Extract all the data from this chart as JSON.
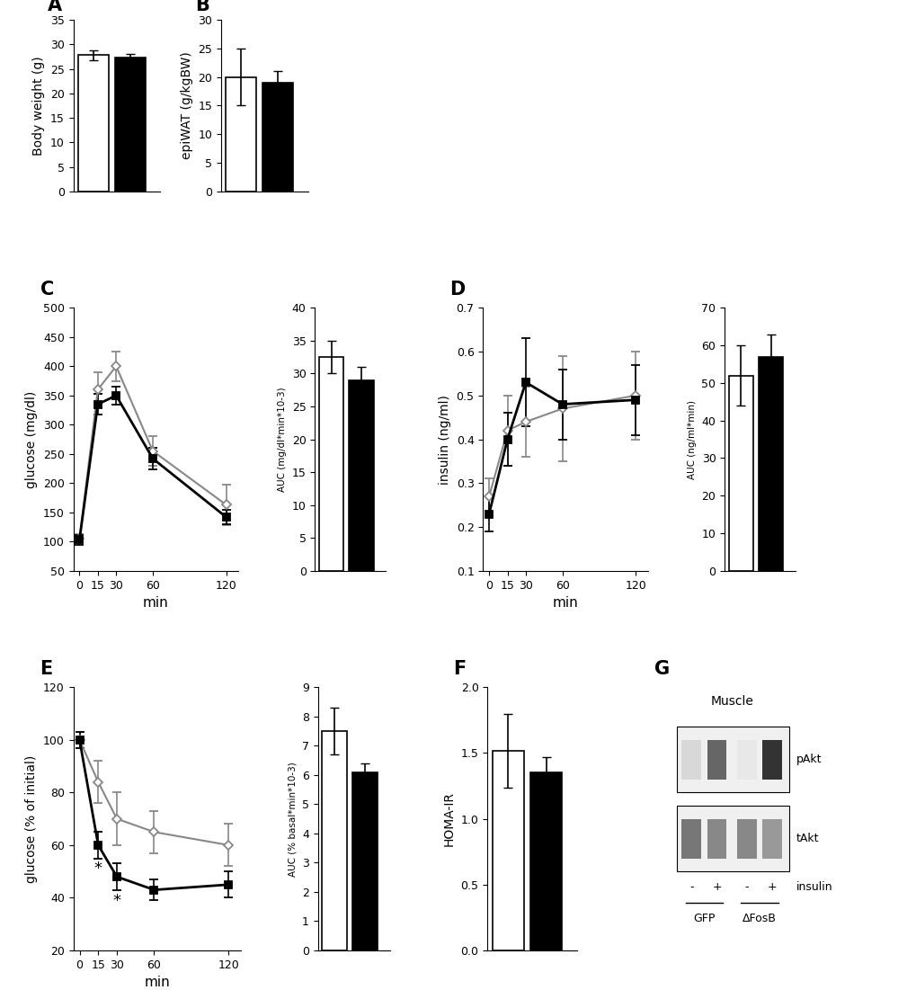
{
  "panel_A": {
    "bars": [
      27.8,
      27.3
    ],
    "errors": [
      1.0,
      0.7
    ],
    "colors": [
      "white",
      "black"
    ],
    "ylabel": "Body weight (g)",
    "ylim": [
      0,
      35
    ],
    "yticks": [
      0,
      5,
      10,
      15,
      20,
      25,
      30,
      35
    ]
  },
  "panel_B": {
    "bars": [
      20.0,
      19.0
    ],
    "errors": [
      5.0,
      2.0
    ],
    "colors": [
      "white",
      "black"
    ],
    "ylabel": "epiWAT (g/kgBW)",
    "ylim": [
      0,
      30
    ],
    "yticks": [
      0,
      5,
      10,
      15,
      20,
      25,
      30
    ]
  },
  "panel_C_line": {
    "x": [
      0,
      15,
      30,
      60,
      120
    ],
    "gfp": [
      105,
      360,
      400,
      255,
      163
    ],
    "dfosb": [
      103,
      335,
      350,
      242,
      142
    ],
    "gfp_err": [
      8,
      30,
      25,
      25,
      35
    ],
    "dfosb_err": [
      8,
      18,
      15,
      18,
      12
    ],
    "xlabel": "min",
    "ylabel": "glucose (mg/dl)",
    "ylim": [
      50,
      500
    ],
    "yticks": [
      50,
      100,
      150,
      200,
      250,
      300,
      350,
      400,
      450,
      500
    ]
  },
  "panel_C_bar": {
    "bars": [
      32.5,
      29.0
    ],
    "errors": [
      2.5,
      2.0
    ],
    "colors": [
      "white",
      "black"
    ],
    "ylabel": "AUC (mg/dl*min*10-3)",
    "ylim": [
      0,
      40
    ],
    "yticks": [
      0,
      5,
      10,
      15,
      20,
      25,
      30,
      35,
      40
    ]
  },
  "panel_D_line": {
    "x": [
      0,
      15,
      30,
      60,
      120
    ],
    "gfp": [
      0.27,
      0.42,
      0.44,
      0.47,
      0.5
    ],
    "dfosb": [
      0.23,
      0.4,
      0.53,
      0.48,
      0.49
    ],
    "gfp_err": [
      0.04,
      0.08,
      0.08,
      0.12,
      0.1
    ],
    "dfosb_err": [
      0.04,
      0.06,
      0.1,
      0.08,
      0.08
    ],
    "xlabel": "min",
    "ylabel": "insulin (ng/ml)",
    "ylim": [
      0.1,
      0.7
    ],
    "yticks": [
      0.1,
      0.2,
      0.3,
      0.4,
      0.5,
      0.6,
      0.7
    ]
  },
  "panel_D_bar": {
    "bars": [
      52.0,
      57.0
    ],
    "errors": [
      8.0,
      6.0
    ],
    "colors": [
      "white",
      "black"
    ],
    "ylabel": "AUC (ng/ml*min)",
    "ylim": [
      0,
      70
    ],
    "yticks": [
      0,
      10,
      20,
      30,
      40,
      50,
      60,
      70
    ]
  },
  "panel_E_line": {
    "x": [
      0,
      15,
      30,
      60,
      120
    ],
    "gfp": [
      100,
      84,
      70,
      65,
      60
    ],
    "dfosb": [
      100,
      60,
      48,
      43,
      45
    ],
    "gfp_err": [
      3,
      8,
      10,
      8,
      8
    ],
    "dfosb_err": [
      3,
      5,
      5,
      4,
      5
    ],
    "xlabel": "min",
    "ylabel": "glucose (% of initial)",
    "ylim": [
      20,
      120
    ],
    "yticks": [
      20,
      40,
      60,
      80,
      100,
      120
    ],
    "sig_points": [
      15,
      30
    ]
  },
  "panel_E_bar": {
    "bars": [
      7.5,
      6.1
    ],
    "errors": [
      0.8,
      0.3
    ],
    "colors": [
      "white",
      "black"
    ],
    "ylabel": "AUC (% basal*min*10-3)",
    "ylim": [
      0,
      9
    ],
    "yticks": [
      0,
      1,
      2,
      3,
      4,
      5,
      6,
      7,
      8,
      9
    ]
  },
  "panel_F": {
    "bars": [
      1.52,
      1.35
    ],
    "errors": [
      0.28,
      0.12
    ],
    "colors": [
      "white",
      "black"
    ],
    "ylabel": "HOMA-IR",
    "ylim": [
      0,
      2
    ],
    "yticks": [
      0,
      0.5,
      1.0,
      1.5,
      2.0
    ]
  },
  "colors": {
    "gfp_line": "#888888",
    "dfosb_line": "#000000",
    "white_bar": "#ffffff",
    "black_bar": "#000000",
    "edge": "#000000"
  },
  "label_fontsize": 11,
  "tick_fontsize": 9,
  "panel_label_fontsize": 15
}
